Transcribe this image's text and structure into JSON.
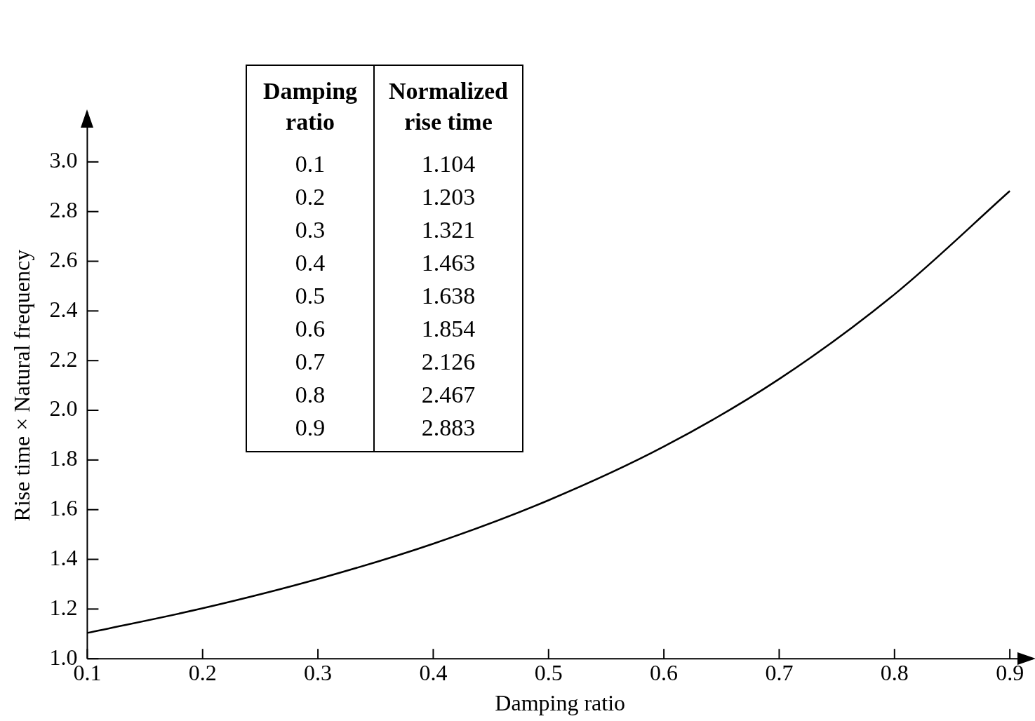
{
  "chart_data": {
    "type": "line",
    "xlabel": "Damping ratio",
    "ylabel": "Rise time × Natural frequency",
    "annotations": [
      "Damping ratio",
      "Normalized rise time",
      "0.1",
      "1.104",
      "0.2",
      "1.203",
      "0.3",
      "1.321",
      "0.4",
      "1.463",
      "0.5",
      "1.638",
      "0.6",
      "1.854",
      "0.7",
      "2.126",
      "0.8",
      "2.467",
      "0.9",
      "2.883"
    ],
    "x": [
      0.1,
      0.2,
      0.3,
      0.4,
      0.5,
      0.6,
      0.7,
      0.8,
      0.9
    ],
    "series": [
      {
        "color": "#000000",
        "values": [
          1.104,
          1.203,
          1.321,
          1.463,
          1.638,
          1.854,
          2.126,
          2.467,
          2.883
        ]
      }
    ],
    "xlim": [
      0.1,
      0.92
    ],
    "xticks": [
      0.1,
      0.2,
      0.3,
      0.4,
      0.5,
      0.6,
      0.7,
      0.8,
      0.9
    ],
    "ylim": [
      1,
      3.2
    ],
    "yticks": [
      {
        "value": 1,
        "label": "1.0"
      },
      1.2,
      1.4,
      1.6,
      1.8,
      {
        "value": 2,
        "label": "2.0"
      },
      2.2,
      2.4,
      2.6,
      2.8,
      {
        "value": 3,
        "label": "3.0"
      }
    ],
    "grid": false,
    "legend": false,
    "marker": "none",
    "line_style": "solid"
  }
}
